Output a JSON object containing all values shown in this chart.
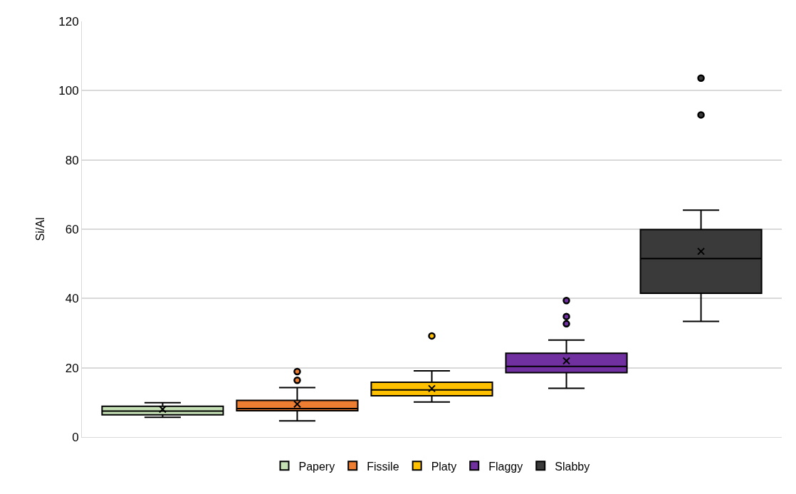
{
  "chart_data": {
    "type": "box",
    "ylabel": "Si/Al",
    "categories": [
      null
    ],
    "ylim": [
      0,
      120
    ],
    "yticks": [
      0,
      20,
      40,
      60,
      80,
      100,
      120
    ],
    "grid": "y",
    "legend": "bottom",
    "series": [
      {
        "name": "Papery",
        "color": "#c5e0b4",
        "boxes": [
          {
            "low": 5.7,
            "q1": 6.4,
            "median": 7.5,
            "q3": 8.9,
            "high": 9.9,
            "mean": 8
          }
        ]
      },
      {
        "name": "Fissile",
        "color": "#ed7d31",
        "boxes": [
          {
            "low": 4.7,
            "q1": 7.6,
            "median": 8.2,
            "q3": 10.6,
            "high": 14.3,
            "mean": 9.5,
            "outliers": [
              16.4,
              18.9
            ]
          }
        ]
      },
      {
        "name": "Platy",
        "color": "#ffc000",
        "boxes": [
          {
            "low": 10.1,
            "q1": 11.9,
            "median": 13.6,
            "q3": 15.8,
            "high": 19.1,
            "mean": 14,
            "outliers": [
              29.2
            ]
          }
        ]
      },
      {
        "name": "Flaggy",
        "color": "#7030a0",
        "boxes": [
          {
            "low": 14.1,
            "q1": 18.6,
            "median": 20.4,
            "q3": 24.2,
            "high": 28.0,
            "mean": 22,
            "outliers": [
              32.7,
              34.8,
              39.4
            ]
          }
        ]
      },
      {
        "name": "Slabby",
        "color": "#3a3a3a",
        "boxes": [
          {
            "low": 33.4,
            "q1": 41.5,
            "median": 51.5,
            "q3": 59.9,
            "high": 65.5,
            "mean": 53.6,
            "outliers": [
              93.0,
              103.6
            ]
          }
        ]
      }
    ]
  }
}
